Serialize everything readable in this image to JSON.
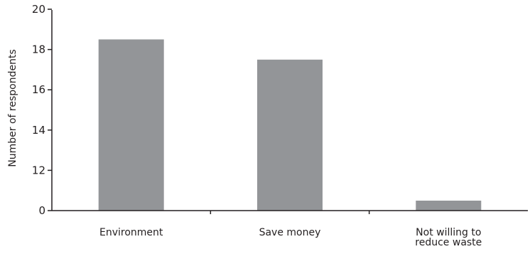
{
  "chart_data": {
    "type": "bar",
    "categories": [
      [
        "Environment"
      ],
      [
        "Save money"
      ],
      [
        "Not willing to",
        "reduce waste"
      ]
    ],
    "values": [
      18.5,
      17.5,
      0.5
    ],
    "ylabel": "Number of respondents",
    "y_ticks": [
      "0",
      "12",
      "14",
      "16",
      "18",
      "20"
    ],
    "axis_note": "broken y-axis: jumps from 0 to 10",
    "ylim": [
      0,
      20
    ],
    "grid": false,
    "colors": {
      "bar": "#939598",
      "axis": "#231f20",
      "text": "#231f20"
    }
  }
}
